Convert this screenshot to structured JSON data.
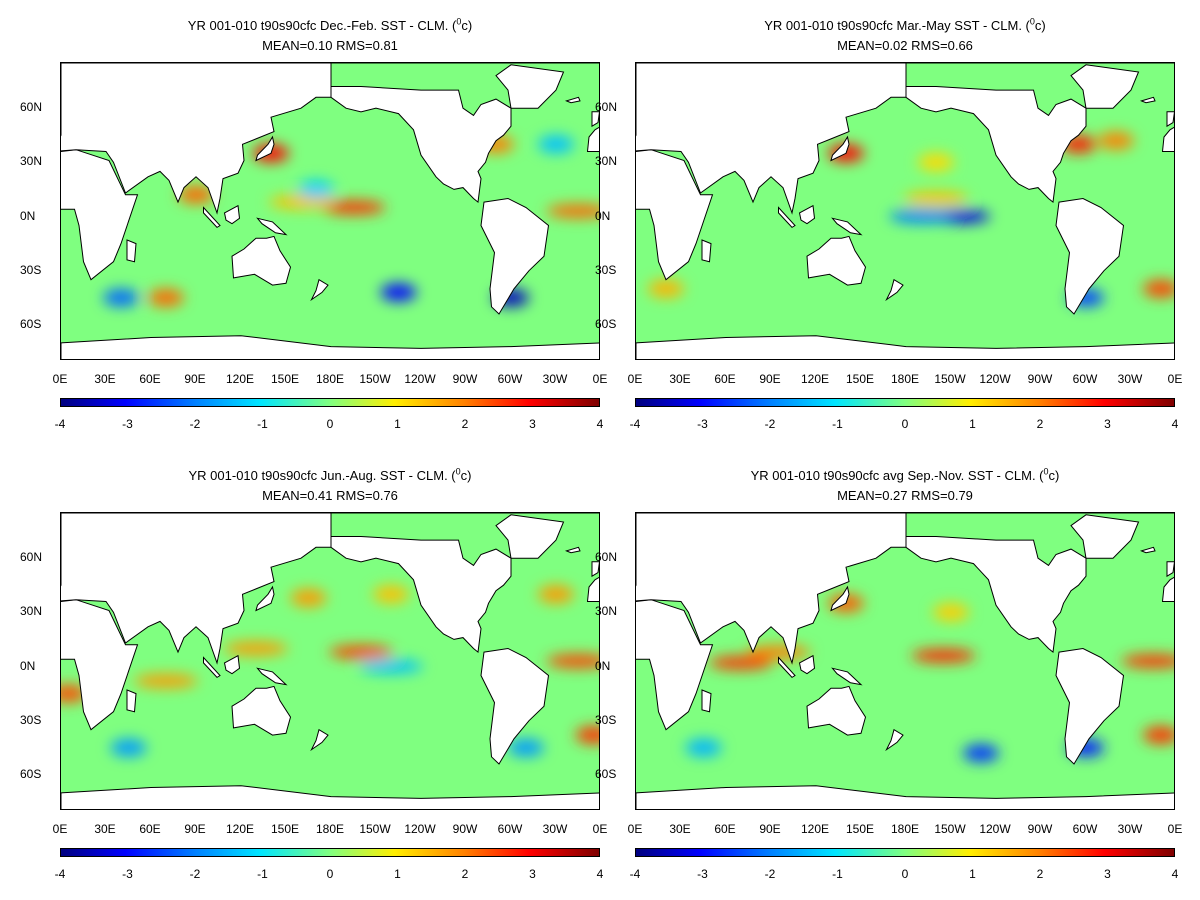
{
  "map_data": {
    "type": "heatmap",
    "colormap": "jet",
    "x_ticks": [
      "0E",
      "30E",
      "60E",
      "90E",
      "120E",
      "150E",
      "180E",
      "150W",
      "120W",
      "90W",
      "60W",
      "30W",
      "0E"
    ],
    "y_ticks": [
      "60N",
      "30N",
      "0N",
      "30S",
      "60S"
    ],
    "colorbar_ticks": [
      "-4",
      "-3",
      "-2",
      "-1",
      "0",
      "1",
      "2",
      "3",
      "4"
    ],
    "colorbar_range": [
      -4,
      4
    ],
    "land_color": "#ffffff",
    "ocean_base_color": "#7fff80",
    "panels": [
      {
        "title": "YR 001-010 t90s90cfc  Dec.-Feb. SST - CLM. (",
        "unit_sup": "0",
        "unit_tail": "c)",
        "stats": "MEAN=0.10   RMS=0.81",
        "anomalies": [
          {
            "lon": 195,
            "lat": 5,
            "value": 2.6
          },
          {
            "lon": 160,
            "lat": 8,
            "value": 1.5
          },
          {
            "lon": 345,
            "lat": 3,
            "value": 2.2
          },
          {
            "lon": 140,
            "lat": 35,
            "value": 3.0
          },
          {
            "lon": 90,
            "lat": 12,
            "value": 2.2
          },
          {
            "lon": 300,
            "lat": -45,
            "value": -3.5
          },
          {
            "lon": 225,
            "lat": -42,
            "value": -3.0
          },
          {
            "lon": 40,
            "lat": -45,
            "value": -2.2
          },
          {
            "lon": 70,
            "lat": -45,
            "value": 2.2
          },
          {
            "lon": 170,
            "lat": 15,
            "value": -1.4
          },
          {
            "lon": 290,
            "lat": 40,
            "value": 2.0
          },
          {
            "lon": 330,
            "lat": 40,
            "value": -1.5
          }
        ]
      },
      {
        "title": "YR 001-010 t90s90cfc Mar.-May SST - CLM. (",
        "unit_sup": "0",
        "unit_tail": "c)",
        "stats": "MEAN=0.02   RMS=0.66",
        "anomalies": [
          {
            "lon": 215,
            "lat": 0,
            "value": -3.2
          },
          {
            "lon": 190,
            "lat": 0,
            "value": -2.0
          },
          {
            "lon": 140,
            "lat": 35,
            "value": 3.0
          },
          {
            "lon": 295,
            "lat": 40,
            "value": 2.8
          },
          {
            "lon": 320,
            "lat": 42,
            "value": 2.0
          },
          {
            "lon": 200,
            "lat": 10,
            "value": 1.5
          },
          {
            "lon": 200,
            "lat": 30,
            "value": 1.3
          },
          {
            "lon": 300,
            "lat": -45,
            "value": -2.5
          },
          {
            "lon": 350,
            "lat": -40,
            "value": 2.5
          },
          {
            "lon": 20,
            "lat": -40,
            "value": 1.6
          }
        ]
      },
      {
        "title": "YR 001-010 t90s90cfc Jun.-Aug. SST - CLM. (",
        "unit_sup": "0",
        "unit_tail": "c)",
        "stats": "MEAN=0.41   RMS=0.76",
        "anomalies": [
          {
            "lon": 200,
            "lat": 8,
            "value": 2.5
          },
          {
            "lon": 220,
            "lat": 0,
            "value": -1.5
          },
          {
            "lon": 345,
            "lat": 3,
            "value": 2.5
          },
          {
            "lon": 5,
            "lat": -15,
            "value": 2.4
          },
          {
            "lon": 70,
            "lat": -8,
            "value": 1.8
          },
          {
            "lon": 165,
            "lat": 38,
            "value": 1.8
          },
          {
            "lon": 220,
            "lat": 40,
            "value": 1.5
          },
          {
            "lon": 330,
            "lat": 40,
            "value": 1.8
          },
          {
            "lon": 355,
            "lat": -38,
            "value": 2.6
          },
          {
            "lon": 310,
            "lat": -45,
            "value": -1.8
          },
          {
            "lon": 45,
            "lat": -45,
            "value": -1.8
          },
          {
            "lon": 130,
            "lat": 10,
            "value": 1.8
          }
        ]
      },
      {
        "title": "YR 001-010 t90s90cfc avg Sep.-Nov. SST - CLM. (",
        "unit_sup": "0",
        "unit_tail": "c)",
        "stats": "MEAN=0.27   RMS=0.79",
        "anomalies": [
          {
            "lon": 205,
            "lat": 6,
            "value": 2.7
          },
          {
            "lon": 345,
            "lat": 3,
            "value": 2.6
          },
          {
            "lon": 70,
            "lat": 2,
            "value": 2.6
          },
          {
            "lon": 95,
            "lat": 8,
            "value": 2.0
          },
          {
            "lon": 140,
            "lat": 35,
            "value": 2.3
          },
          {
            "lon": 300,
            "lat": -45,
            "value": -2.8
          },
          {
            "lon": 230,
            "lat": -48,
            "value": -2.6
          },
          {
            "lon": 350,
            "lat": -38,
            "value": 2.6
          },
          {
            "lon": 45,
            "lat": -45,
            "value": -1.6
          },
          {
            "lon": 210,
            "lat": 30,
            "value": 1.4
          }
        ]
      }
    ]
  }
}
